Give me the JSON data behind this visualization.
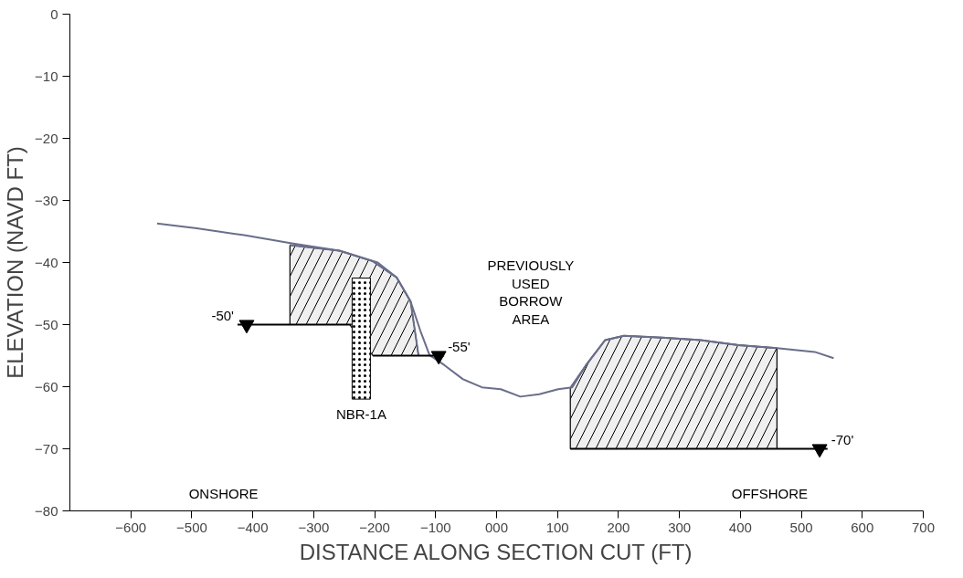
{
  "chart_data": {
    "type": "line",
    "xlabel": "DISTANCE ALONG SECTION CUT (FT)",
    "ylabel": "ELEVATION (NAVD FT)",
    "xlim": [
      -700,
      700
    ],
    "ylim": [
      -80,
      0
    ],
    "xticks": [
      -600,
      -500,
      -400,
      -300,
      -200,
      -100,
      {
        "value": 0,
        "label": "000"
      },
      100,
      200,
      300,
      400,
      500,
      600,
      700
    ],
    "yticks": [
      0,
      -10,
      -20,
      -30,
      -40,
      -50,
      -60,
      -70,
      -80
    ],
    "grid": false,
    "series": [
      {
        "type": "line",
        "color": "#6a6e8a",
        "x": [
          -339,
          -258,
          -241,
          -203,
          -164,
          -141,
          -128
        ],
        "values": [
          -37.2,
          -38.1,
          -38.6,
          -39.8,
          -42.4,
          -46.3,
          -55
        ],
        "upper": [
          -37.2,
          -38.1,
          -38.6,
          -39.8,
          -42.4,
          -46.3,
          -55
        ],
        "lower": [
          -50,
          -50,
          -50,
          -55,
          -55,
          -55,
          -55
        ]
      },
      {
        "type": "line",
        "color": "#6a6e8a",
        "x": [
          121,
          147,
          178,
          209,
          272,
          335,
          397,
          460
        ],
        "values": [
          -60.2,
          -56.5,
          -52.5,
          -51.8,
          -52.1,
          -52.5,
          -53.3,
          -53.8
        ],
        "upper": [
          -60.2,
          -56.5,
          -52.5,
          -51.8,
          -52.1,
          -52.5,
          -53.3,
          -53.8
        ],
        "lower": [
          -70,
          -70,
          -70,
          -70,
          -70,
          -70,
          -70,
          -70
        ]
      },
      {
        "color": "#6a6e8a",
        "x": [
          -557,
          -492,
          -414,
          -336,
          -258,
          -195,
          -164,
          -141,
          -125,
          -110,
          -86,
          -55,
          -24,
          7,
          39,
          70,
          101,
          124,
          147,
          178,
          209,
          272,
          335,
          397,
          460,
          522,
          553
        ],
        "values": [
          -33.7,
          -34.5,
          -35.6,
          -36.9,
          -38.1,
          -40,
          -42.4,
          -46.3,
          -51,
          -54.9,
          -56.5,
          -58.8,
          -60.1,
          -60.4,
          -61.6,
          -61.2,
          -60.4,
          -60.1,
          -56.5,
          -52.5,
          -51.8,
          -52.1,
          -52.5,
          -53.3,
          -53.8,
          -54.4,
          -55.4
        ]
      },
      {
        "type": "line",
        "name": "-50'",
        "color": "#000000",
        "x": [
          -425,
          -238
        ],
        "values": [
          -50,
          -50
        ]
      },
      {
        "type": "line",
        "name": "-55'",
        "color": "#000000",
        "x": [
          -203,
          -86
        ],
        "values": [
          -55,
          -55
        ]
      },
      {
        "type": "line",
        "name": "-70'",
        "color": "#000000",
        "x": [
          121,
          543
        ],
        "values": [
          -70,
          -70
        ]
      },
      {
        "type": "scatter",
        "marker": "triangle",
        "color": "#000000",
        "x": [
          -410,
          -95,
          530
        ],
        "values": [
          -50,
          -55,
          -70
        ]
      },
      {
        "type": "bar",
        "name": "NBR-1A",
        "color": "#000000",
        "x": [
          -222
        ],
        "values": [
          19.5
        ],
        "base": [
          -62
        ]
      }
    ],
    "annotations": [
      "PREVIOUSLY\nUSED\nBORROW\nAREA",
      "ONSHORE",
      "OFFSHORE"
    ]
  }
}
